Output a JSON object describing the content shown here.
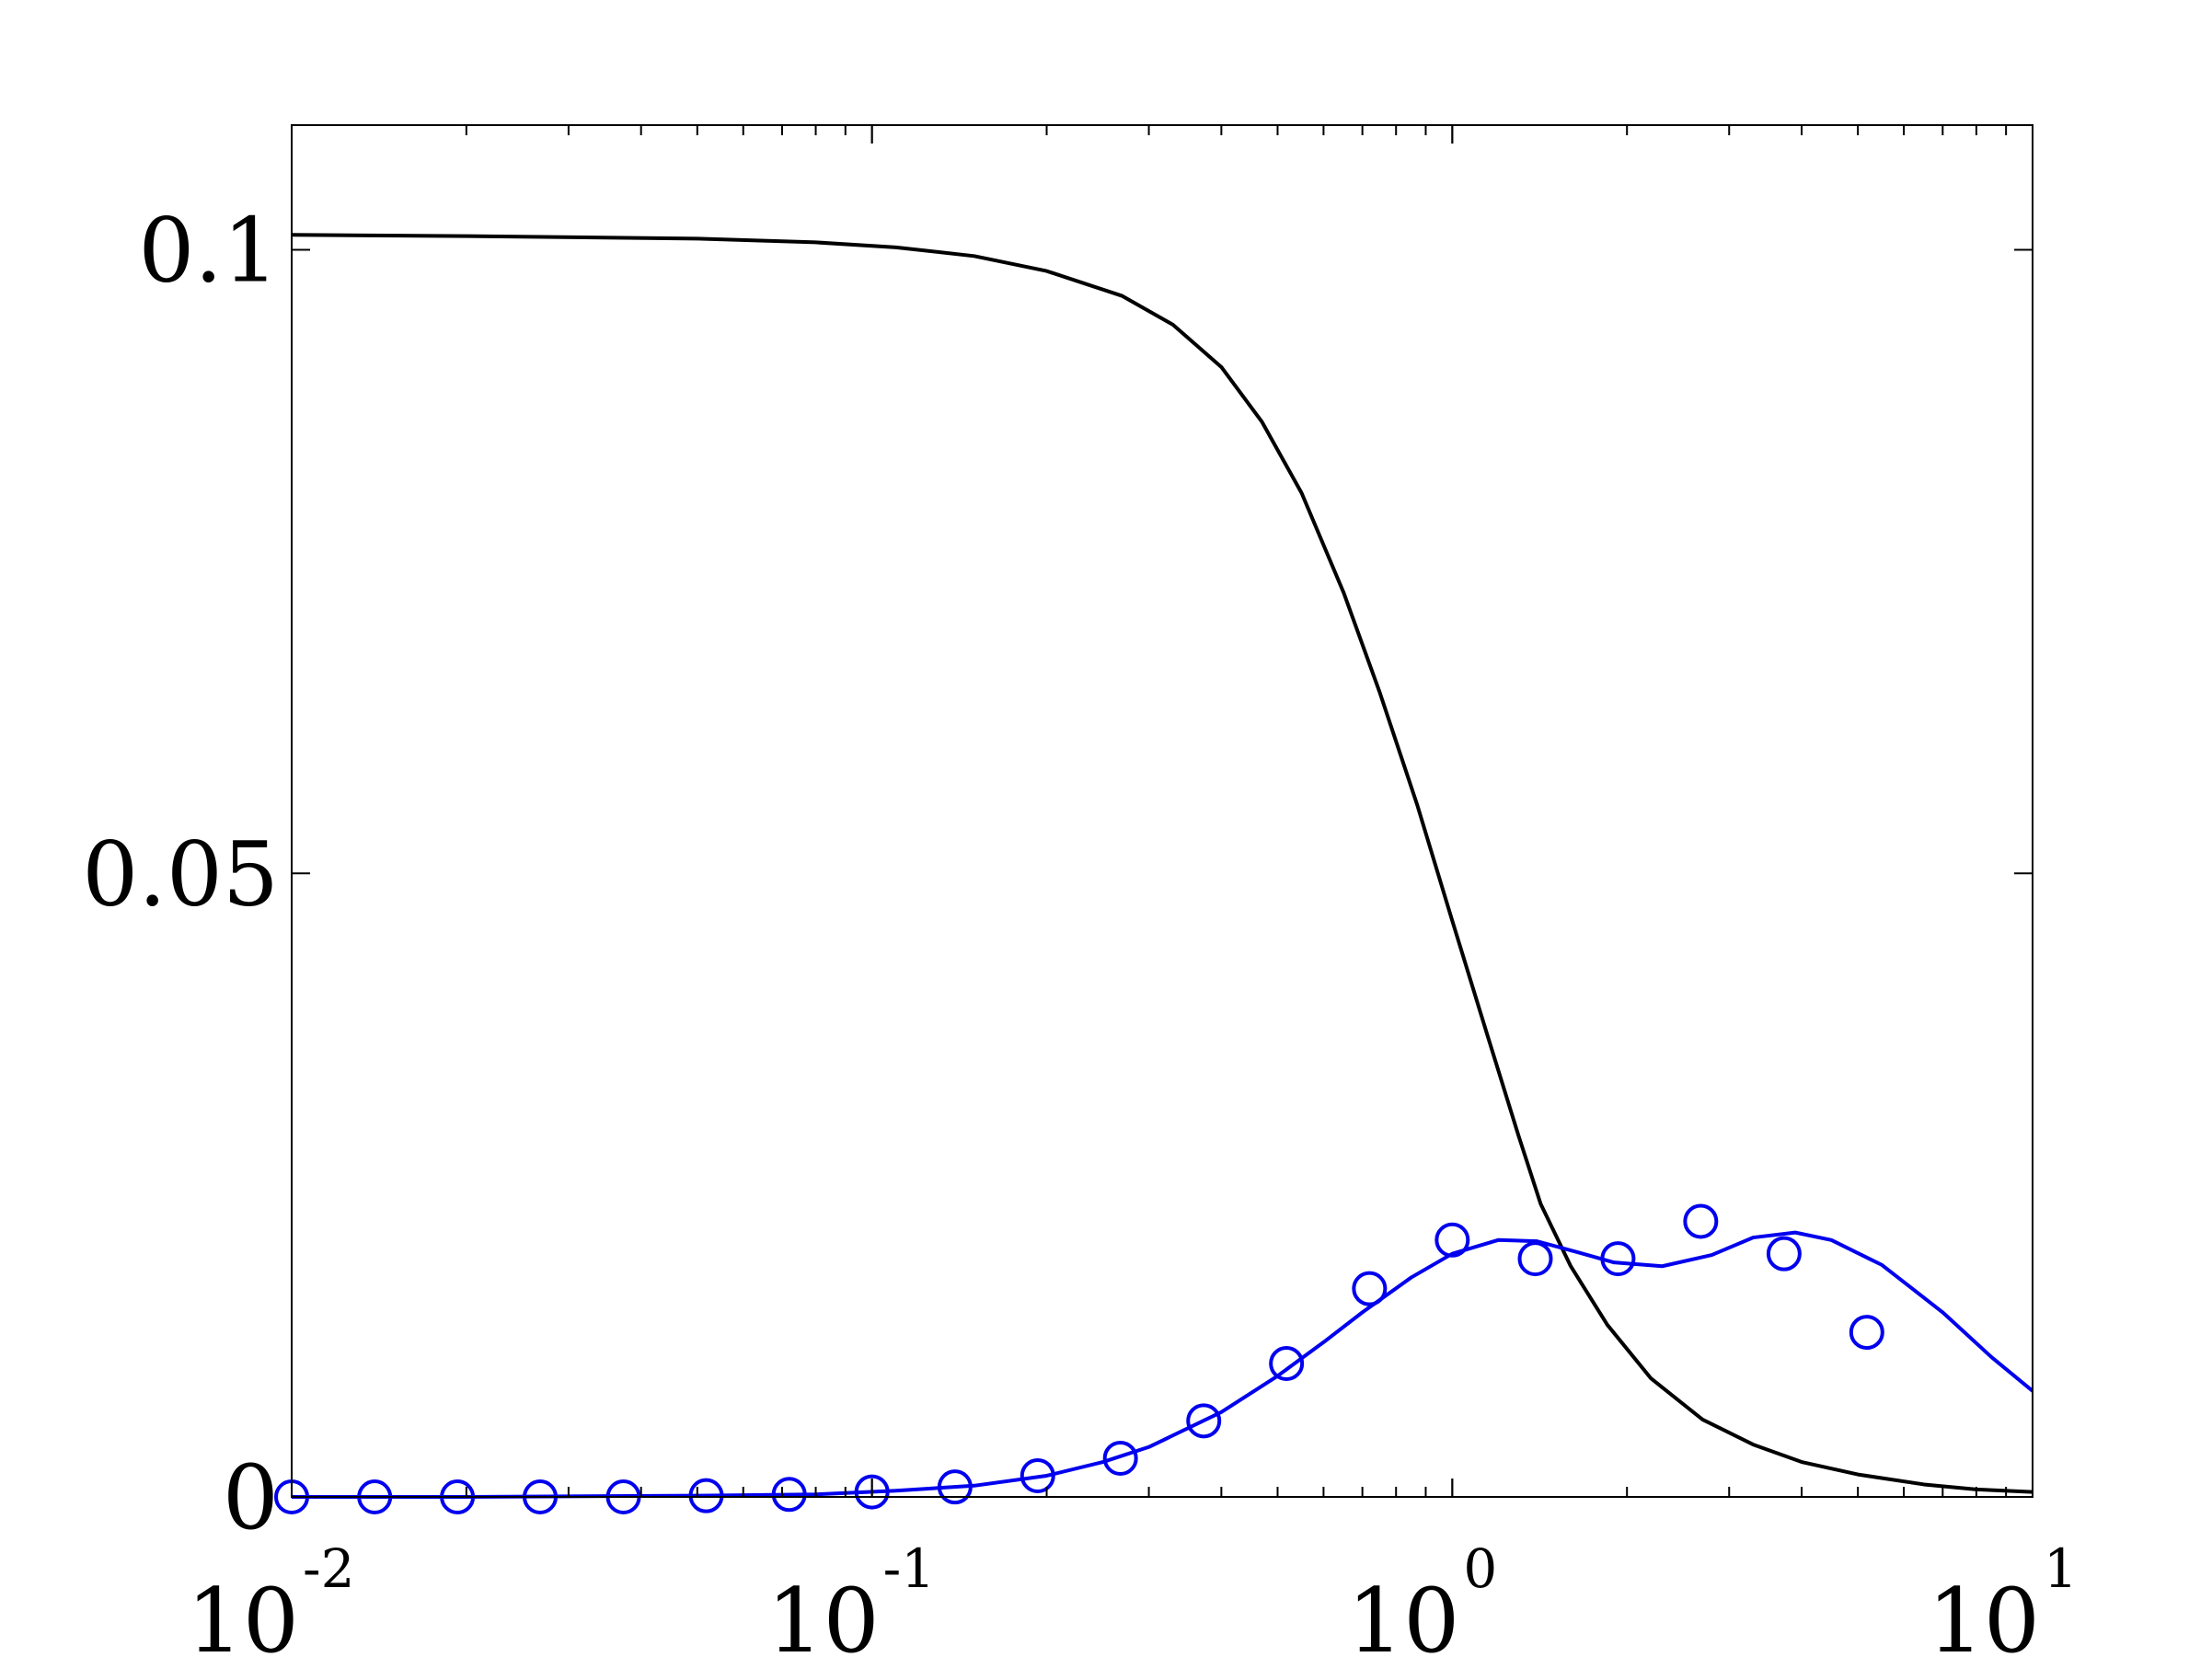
{
  "chart_data": {
    "type": "line",
    "title": "",
    "xlabel": "",
    "ylabel": "",
    "xscale": "log",
    "xlim": [
      0.01,
      10
    ],
    "ylim": [
      0,
      0.11
    ],
    "grid": false,
    "legend": "none",
    "yticks": [
      {
        "value": 0,
        "label": "0"
      },
      {
        "value": 0.05,
        "label": "0.05"
      },
      {
        "value": 0.1,
        "label": "0.1"
      }
    ],
    "xticks": [
      {
        "value": 0.01,
        "base": "10",
        "exp": "-2"
      },
      {
        "value": 0.1,
        "base": "10",
        "exp": "-1"
      },
      {
        "value": 1,
        "base": "10",
        "exp": "0"
      },
      {
        "value": 10,
        "base": "10",
        "exp": "1"
      }
    ],
    "series": [
      {
        "color": "#000000",
        "marker": "none",
        "points": [
          [
            0.01,
            0.1012
          ],
          [
            0.02,
            0.1011
          ],
          [
            0.05,
            0.1009
          ],
          [
            0.08,
            0.1006
          ],
          [
            0.11,
            0.1002
          ],
          [
            0.15,
            0.0995
          ],
          [
            0.2,
            0.0983
          ],
          [
            0.27,
            0.0963
          ],
          [
            0.33,
            0.094
          ],
          [
            0.4,
            0.0906
          ],
          [
            0.47,
            0.0862
          ],
          [
            0.55,
            0.0805
          ],
          [
            0.65,
            0.0725
          ],
          [
            0.75,
            0.0645
          ],
          [
            0.87,
            0.0555
          ],
          [
            1.0,
            0.0462
          ],
          [
            1.15,
            0.037
          ],
          [
            1.3,
            0.029
          ],
          [
            1.42,
            0.0235
          ],
          [
            1.6,
            0.0185
          ],
          [
            1.85,
            0.0138
          ],
          [
            2.2,
            0.0095
          ],
          [
            2.7,
            0.0062
          ],
          [
            3.3,
            0.0042
          ],
          [
            4.0,
            0.0028
          ],
          [
            5.0,
            0.0018
          ],
          [
            6.5,
            0.001
          ],
          [
            8.0,
            0.0006
          ],
          [
            10,
            0.0004
          ]
        ]
      },
      {
        "color": "#0000ee",
        "marker": "circle",
        "points": [
          [
            0.01,
            0.0
          ],
          [
            0.02,
            0.0
          ],
          [
            0.05,
            0.0001
          ],
          [
            0.08,
            0.0002
          ],
          [
            0.11,
            0.0005
          ],
          [
            0.15,
            0.0009
          ],
          [
            0.2,
            0.0017
          ],
          [
            0.25,
            0.0028
          ],
          [
            0.3,
            0.004
          ],
          [
            0.4,
            0.0068
          ],
          [
            0.5,
            0.0097
          ],
          [
            0.6,
            0.0124
          ],
          [
            0.7,
            0.0148
          ],
          [
            0.85,
            0.0176
          ],
          [
            1.0,
            0.0195
          ],
          [
            1.2,
            0.0206
          ],
          [
            1.4,
            0.0205
          ],
          [
            1.65,
            0.0196
          ],
          [
            1.9,
            0.0188
          ],
          [
            2.3,
            0.0185
          ],
          [
            2.8,
            0.0194
          ],
          [
            3.3,
            0.0208
          ],
          [
            3.9,
            0.0212
          ],
          [
            4.5,
            0.0206
          ],
          [
            5.5,
            0.0186
          ],
          [
            7.0,
            0.0148
          ],
          [
            8.5,
            0.0112
          ],
          [
            10,
            0.0085
          ]
        ],
        "markers": [
          [
            0.01,
            0.0
          ],
          [
            0.0139,
            0.0
          ],
          [
            0.0193,
            0.0
          ],
          [
            0.0268,
            0.0
          ],
          [
            0.0373,
            0.0
          ],
          [
            0.0518,
            0.0001
          ],
          [
            0.072,
            0.0002
          ],
          [
            0.1,
            0.0004
          ],
          [
            0.139,
            0.0008
          ],
          [
            0.193,
            0.0017
          ],
          [
            0.268,
            0.0031
          ],
          [
            0.373,
            0.0061
          ],
          [
            0.518,
            0.0107
          ],
          [
            0.72,
            0.0167
          ],
          [
            1.0,
            0.0206
          ],
          [
            1.39,
            0.0191
          ],
          [
            1.93,
            0.0191
          ],
          [
            2.68,
            0.0221
          ],
          [
            3.73,
            0.0195
          ],
          [
            5.18,
            0.0132
          ]
        ]
      }
    ]
  }
}
